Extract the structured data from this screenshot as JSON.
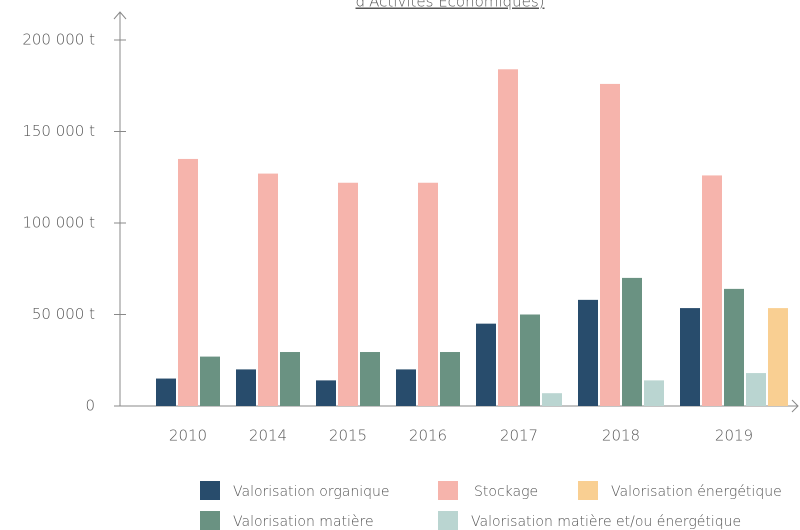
{
  "chart_data": {
    "type": "bar",
    "title": "d'Activités Économiques)",
    "categories": [
      "2010",
      "2014",
      "2015",
      "2016",
      "2017",
      "2018",
      "2019"
    ],
    "series": [
      {
        "name": "Valorisation organique",
        "color": "#284c6c",
        "values": [
          15000,
          20000,
          14000,
          20000,
          45000,
          58000,
          53500
        ]
      },
      {
        "name": "Stockage",
        "color": "#f6b4ac",
        "values": [
          135000,
          127000,
          122000,
          122000,
          184000,
          176000,
          126000
        ]
      },
      {
        "name": "Valorisation matière",
        "color": "#6a9282",
        "values": [
          27000,
          29500,
          29500,
          29500,
          50000,
          70000,
          64000
        ]
      },
      {
        "name": "Valorisation matière et/ou énergétique",
        "color": "#bad5d1",
        "values": [
          null,
          null,
          null,
          null,
          7000,
          14000,
          18000
        ]
      },
      {
        "name": "Valorisation énergétique",
        "color": "#f9cf92",
        "values": [
          null,
          null,
          null,
          null,
          null,
          null,
          53500
        ]
      }
    ],
    "ylim": [
      0,
      200000
    ],
    "yticks": [
      0,
      {
        "value": 50000,
        "label": "50 000 t"
      },
      {
        "value": 100000,
        "label": "100 000 t"
      },
      {
        "value": 150000,
        "label": "150 000 t"
      },
      {
        "value": 200000,
        "label": "200 000 t"
      }
    ]
  }
}
